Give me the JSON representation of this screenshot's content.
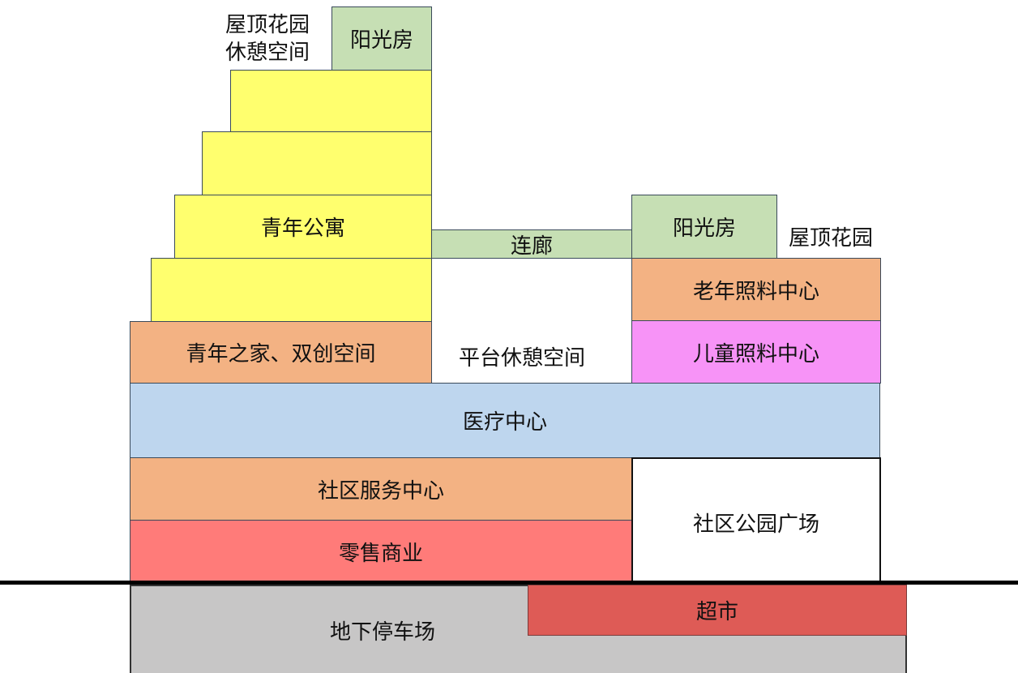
{
  "blocks": {
    "sunroom_left": "阳光房",
    "roof_garden_rest_line1": "屋顶花园",
    "roof_garden_rest_line2": "休憩空间",
    "youth_apartment": "青年公寓",
    "corridor": "连廊",
    "sunroom_right": "阳光房",
    "roof_garden_right": "屋顶花园",
    "elderly_care": "老年照料中心",
    "child_care": "儿童照料中心",
    "youth_home": "青年之家、双创空间",
    "platform_rest": "平台休憩空间",
    "medical_center": "医疗中心",
    "community_service": "社区服务中心",
    "retail": "零售商业",
    "community_park": "社区公园广场",
    "underground_parking": "地下停车场",
    "supermarket": "超市"
  },
  "colors": {
    "sunroom": "#c6dfb4",
    "apartment": "#ffff6e",
    "service": "#f3b283",
    "child_care": "#f793f7",
    "medical": "#bed6ee",
    "retail": "#ff7b79",
    "parking": "#c7c6c6",
    "supermarket": "#de5b56"
  }
}
